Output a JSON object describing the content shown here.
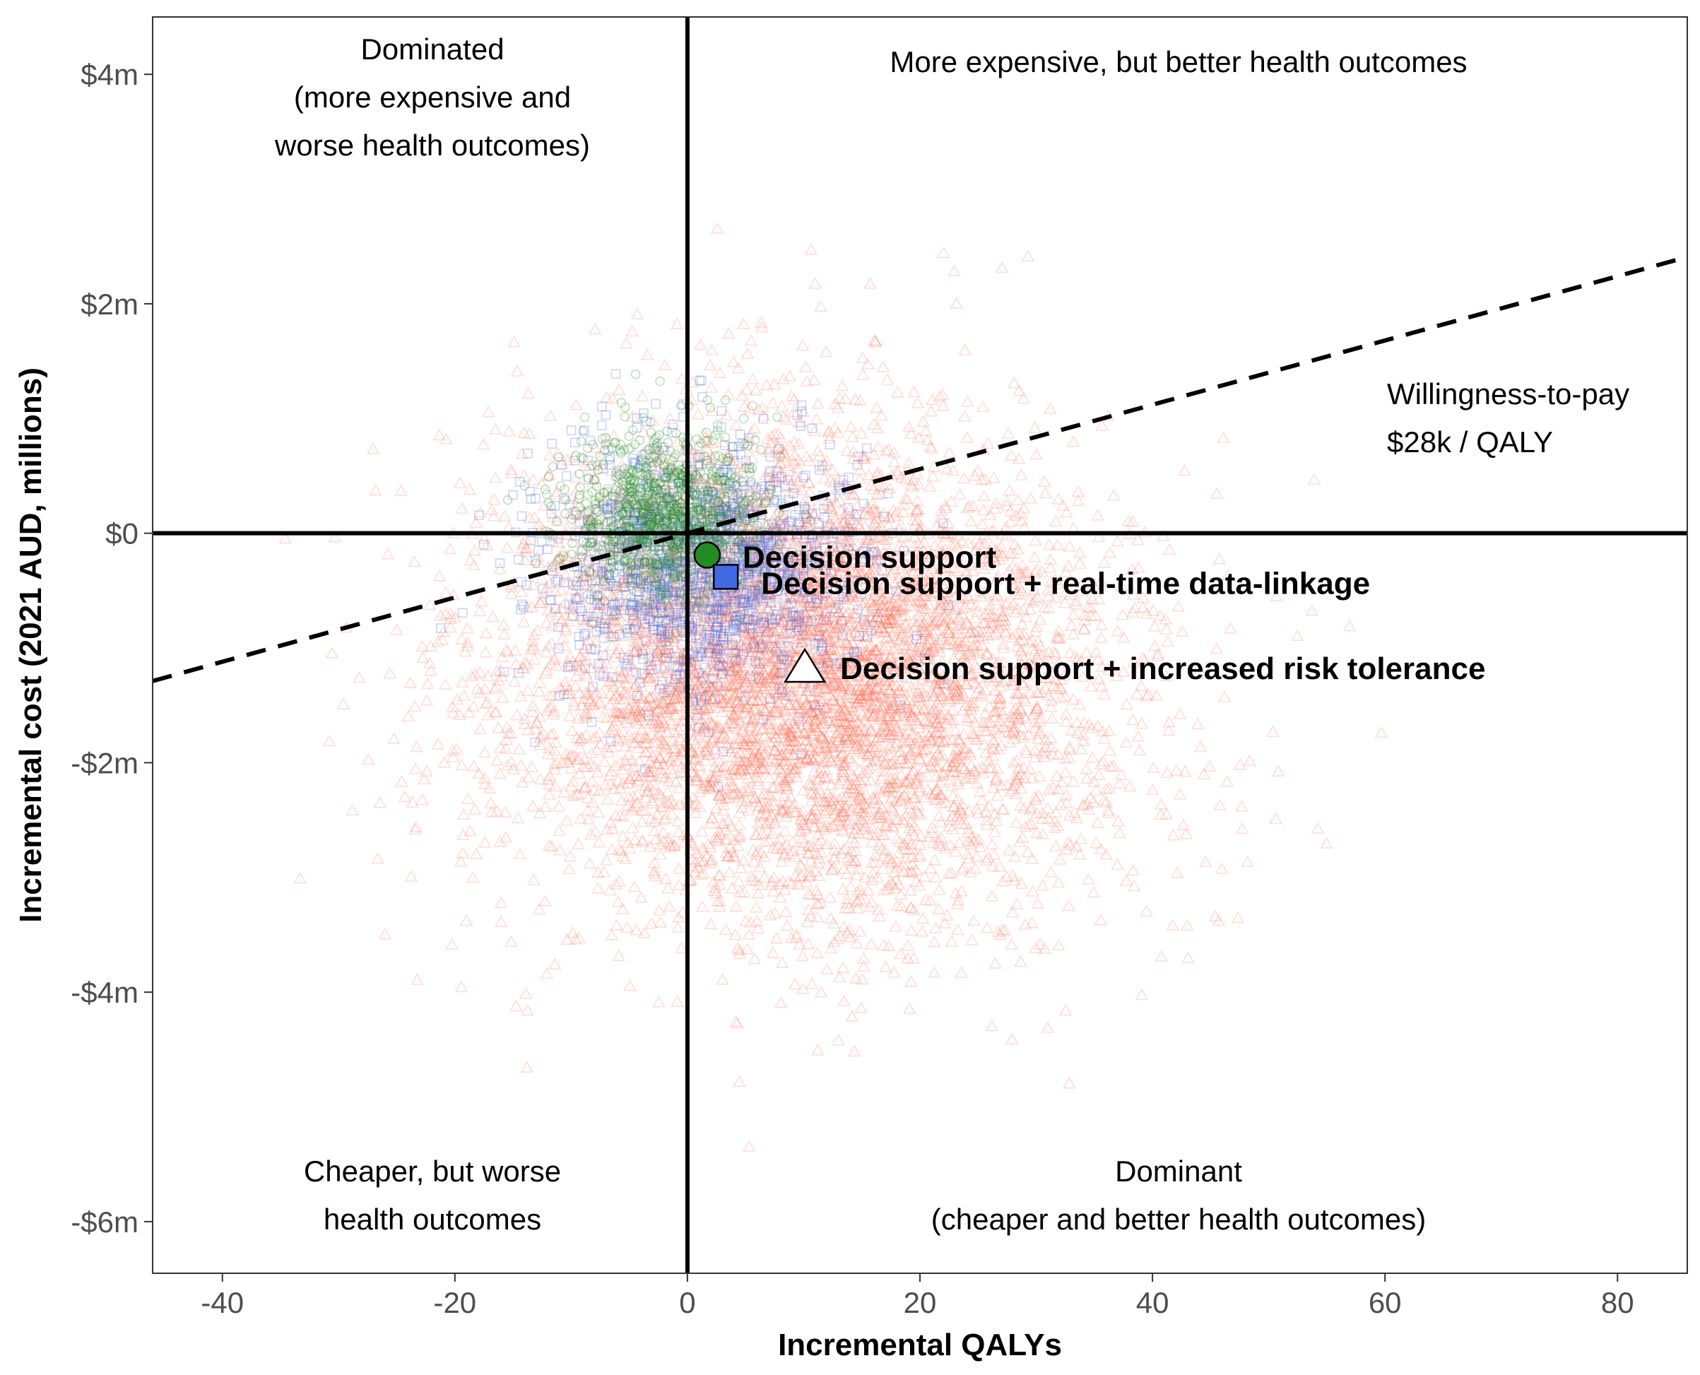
{
  "chart_data": {
    "type": "scatter",
    "title": "",
    "xlabel": "Incremental QALYs",
    "ylabel": "Incremental cost (2021 AUD, millions)",
    "xlim": [
      -46,
      86
    ],
    "ylim": [
      -6.45,
      4.5
    ],
    "x_ticks": [
      -40,
      -20,
      0,
      20,
      40,
      60,
      80
    ],
    "x_tick_labels": [
      "-40",
      "-20",
      "0",
      "20",
      "40",
      "60",
      "80"
    ],
    "y_ticks": [
      4,
      2,
      0,
      -2,
      -4,
      -6
    ],
    "y_tick_labels": [
      "$4m",
      "$2m",
      "$0",
      "-$2m",
      "-$4m",
      "-$6m"
    ],
    "grid": false,
    "reference_lines": {
      "x": 0,
      "y": 0
    },
    "wtp_line": {
      "slope_millions_per_qaly": 0.028,
      "style": "dashed"
    },
    "wtp_text": [
      "Willingness-to-pay",
      "$28k / QALY"
    ],
    "quadrant_labels": {
      "top_left": [
        "Dominated",
        "(more expensive and",
        "worse health outcomes)"
      ],
      "top_right": [
        "More expensive, but better health outcomes"
      ],
      "bottom_left": [
        "Cheaper, but worse",
        "health outcomes"
      ],
      "bottom_right": [
        "Dominant",
        "(cheaper and better health outcomes)"
      ]
    },
    "series": [
      {
        "name": "Decision support",
        "marker": "circle",
        "color": "#228b22",
        "mean": {
          "x": 1.7,
          "y": -0.19
        },
        "cloud": {
          "mean_x": -2.0,
          "mean_y": 0.15,
          "sd_x": 4.0,
          "sd_y": 0.35,
          "n": 1000
        }
      },
      {
        "name": "Decision support + real-time data-linkage",
        "marker": "square",
        "color": "#4169e1",
        "mean": {
          "x": 3.3,
          "y": -0.38
        },
        "cloud": {
          "mean_x": 1.5,
          "mean_y": -0.3,
          "sd_x": 6.5,
          "sd_y": 0.55,
          "n": 1400
        }
      },
      {
        "name": "Decision support + increased risk tolerance",
        "marker": "triangle",
        "color": "#ff6347",
        "mean": {
          "x": 10.1,
          "y": -1.16
        },
        "cloud": {
          "mean_x": 10.1,
          "mean_y": -1.16,
          "sd_x": 13.0,
          "sd_y": 1.05,
          "n": 6000
        }
      }
    ]
  }
}
